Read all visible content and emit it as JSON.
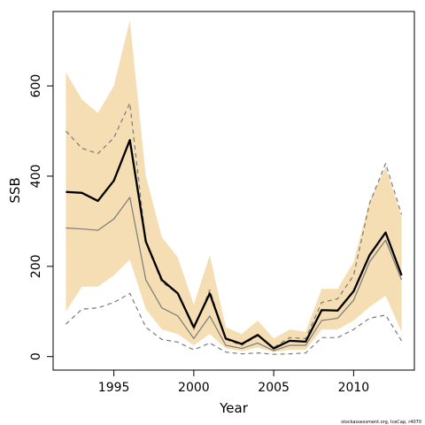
{
  "chart_data": {
    "type": "line",
    "xlabel": "Year",
    "ylabel": "SSB",
    "xlim": [
      1991.2,
      2013.8
    ],
    "ylim": [
      -30,
      765
    ],
    "x_ticks": [
      1995,
      2000,
      2005,
      2010
    ],
    "y_ticks": [
      0,
      200,
      400,
      600
    ],
    "grid": false,
    "years": [
      1992,
      1993,
      1994,
      1995,
      1996,
      1997,
      1998,
      1999,
      2000,
      2001,
      2002,
      2003,
      2004,
      2005,
      2006,
      2007,
      2008,
      2009,
      2010,
      2011,
      2012,
      2013
    ],
    "band": {
      "color": "#f5deb3",
      "upper": [
        630,
        570,
        540,
        600,
        745,
        400,
        265,
        220,
        115,
        225,
        65,
        50,
        80,
        40,
        60,
        55,
        150,
        150,
        210,
        345,
        420,
        310
      ],
      "lower": [
        100,
        155,
        155,
        180,
        215,
        105,
        60,
        50,
        25,
        50,
        18,
        12,
        20,
        10,
        15,
        15,
        60,
        60,
        80,
        110,
        135,
        55
      ]
    },
    "series": [
      {
        "style": "thick-solid",
        "color": "#000000",
        "values": [
          365,
          363,
          345,
          390,
          480,
          255,
          170,
          140,
          65,
          140,
          40,
          28,
          48,
          18,
          35,
          33,
          103,
          102,
          145,
          225,
          275,
          180
        ]
      },
      {
        "style": "thin-solid",
        "color": "#7a7a7a",
        "values": [
          285,
          283,
          280,
          305,
          353,
          170,
          108,
          90,
          40,
          90,
          25,
          18,
          30,
          13,
          25,
          25,
          80,
          85,
          125,
          210,
          258,
          170
        ]
      },
      {
        "style": "dashed-upper",
        "color": "#7a7a7a",
        "values": [
          500,
          462,
          450,
          485,
          562,
          252,
          165,
          140,
          60,
          148,
          38,
          25,
          46,
          20,
          42,
          40,
          120,
          128,
          180,
          340,
          428,
          315
        ]
      },
      {
        "style": "dashed-lower",
        "color": "#7a7a7a",
        "values": [
          72,
          105,
          108,
          120,
          140,
          65,
          38,
          32,
          15,
          30,
          10,
          6,
          8,
          5,
          6,
          8,
          42,
          42,
          60,
          85,
          92,
          35
        ]
      }
    ],
    "credit": "stockassessment.org, IceCap, r4070"
  }
}
